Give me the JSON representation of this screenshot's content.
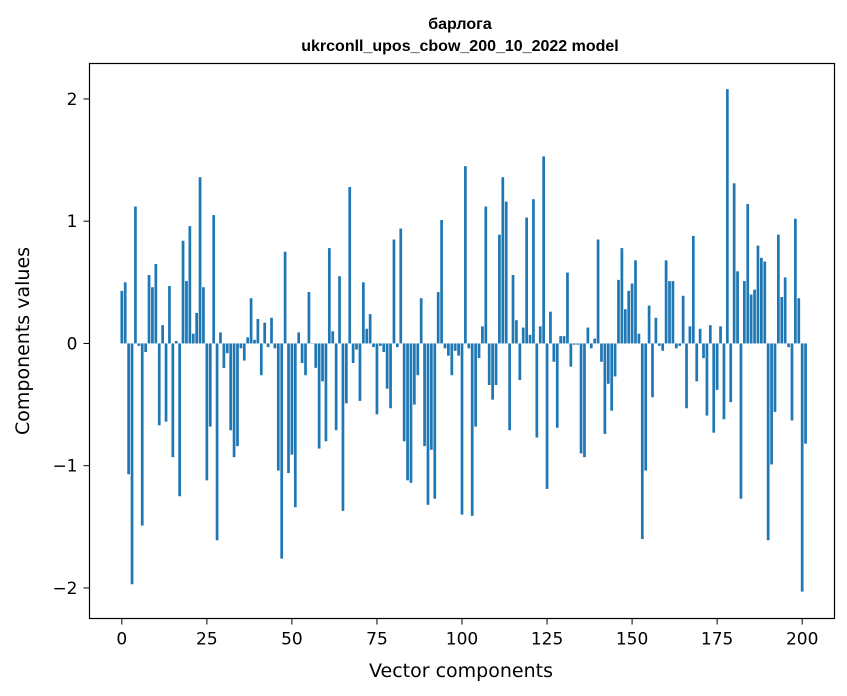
{
  "chart_data": {
    "type": "bar",
    "title": "барлога",
    "subtitle": "ukrconll_upos_cbow_200_10_2022 model",
    "xlabel": "Vector components",
    "ylabel": "Components values",
    "xlim": [
      -9.5,
      209.5
    ],
    "ylim": [
      -2.25,
      2.29
    ],
    "xticks": [
      0,
      25,
      50,
      75,
      100,
      125,
      150,
      175,
      200
    ],
    "yticks": [
      -2,
      -1,
      0,
      1,
      2
    ],
    "ytick_labels": [
      "−2",
      "−1",
      "0",
      "1",
      "2"
    ],
    "grid": false,
    "bar_color": "#1f77b4",
    "values": [
      0.43,
      0.5,
      -1.07,
      -1.97,
      1.12,
      -0.02,
      -1.49,
      -0.07,
      0.56,
      0.46,
      0.65,
      -0.67,
      0.15,
      -0.64,
      0.47,
      -0.93,
      0.02,
      -1.25,
      0.84,
      0.51,
      0.96,
      0.08,
      0.25,
      1.36,
      0.46,
      -1.12,
      -0.68,
      1.05,
      -1.61,
      0.09,
      -0.2,
      -0.08,
      -0.71,
      -0.93,
      -0.84,
      -0.04,
      -0.14,
      0.05,
      0.37,
      0.03,
      0.2,
      -0.26,
      0.17,
      -0.03,
      0.21,
      -0.04,
      -1.04,
      -1.76,
      0.75,
      -1.06,
      -0.91,
      -1.34,
      0.09,
      -0.16,
      -0.26,
      0.42,
      0.0,
      -0.2,
      -0.86,
      -0.31,
      -0.8,
      0.78,
      0.1,
      -0.71,
      0.55,
      -1.37,
      -0.49,
      1.28,
      -0.16,
      -0.05,
      -0.47,
      0.5,
      0.12,
      0.24,
      -0.03,
      -0.58,
      -0.02,
      -0.07,
      -0.37,
      -0.53,
      0.85,
      -0.03,
      0.94,
      -0.8,
      -1.12,
      -1.14,
      -0.5,
      -0.26,
      0.37,
      -0.84,
      -1.32,
      -0.87,
      -1.27,
      0.42,
      1.01,
      -0.04,
      -0.1,
      -0.26,
      -0.06,
      -0.1,
      -1.4,
      1.45,
      -0.04,
      -1.41,
      -0.68,
      -0.12,
      0.14,
      1.12,
      -0.34,
      -0.46,
      -0.34,
      0.89,
      1.36,
      1.16,
      -0.71,
      0.56,
      0.19,
      -0.3,
      0.13,
      1.03,
      0.07,
      1.18,
      -0.77,
      0.14,
      1.53,
      -1.19,
      0.26,
      -0.15,
      -0.69,
      0.06,
      0.06,
      0.58,
      -0.19,
      -0.01,
      -0.01,
      -0.9,
      -0.93,
      0.13,
      -0.04,
      0.04,
      0.85,
      -0.15,
      -0.74,
      -0.33,
      -0.55,
      -0.27,
      0.52,
      0.78,
      0.28,
      0.43,
      0.49,
      0.68,
      0.08,
      -1.6,
      -1.04,
      0.31,
      -0.44,
      0.21,
      -0.02,
      -0.06,
      0.68,
      0.51,
      0.51,
      -0.04,
      -0.02,
      0.39,
      -0.53,
      0.14,
      0.88,
      -0.31,
      0.12,
      -0.12,
      -0.59,
      0.15,
      -0.73,
      -0.38,
      0.14,
      -0.62,
      2.08,
      -0.48,
      1.31,
      0.59,
      -1.27,
      0.51,
      1.14,
      0.4,
      0.44,
      0.8,
      0.7,
      0.67,
      -1.61,
      -0.99,
      -0.56,
      0.89,
      0.38,
      0.54,
      -0.03,
      -0.63,
      1.02,
      0.37,
      -2.03,
      -0.82
    ]
  }
}
